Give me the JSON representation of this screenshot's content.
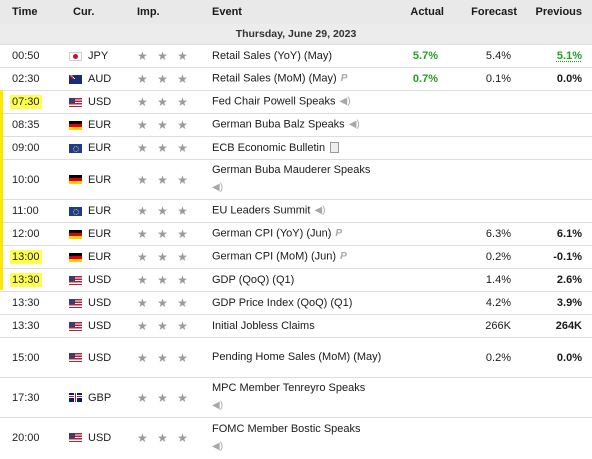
{
  "headers": {
    "time": "Time",
    "currency": "Cur.",
    "importance": "Imp.",
    "event": "Event",
    "actual": "Actual",
    "forecast": "Forecast",
    "previous": "Previous"
  },
  "date_label": "Thursday, June 29, 2023",
  "colors": {
    "positive": "#22a022",
    "highlight": "#ffff4d",
    "star": "#9a9a9a"
  },
  "rows": [
    {
      "time": "00:50",
      "currency": "JPY",
      "flag": "jpy",
      "stars": "★ ★ ★",
      "event": "Retail Sales (YoY) (May)",
      "icon": "",
      "actual": "5.7%",
      "forecast": "5.4%",
      "previous": "5.1%"
    },
    {
      "time": "02:30",
      "currency": "AUD",
      "flag": "aud",
      "stars": "★ ★ ★",
      "event": "Retail Sales (MoM) (May)",
      "icon": "P",
      "actual": "0.7%",
      "forecast": "0.1%",
      "previous": "0.0%"
    },
    {
      "time": "07:30",
      "currency": "USD",
      "flag": "usd",
      "stars": "★ ★ ★",
      "event": "Fed Chair Powell Speaks",
      "icon": "◀)",
      "actual": "",
      "forecast": "",
      "previous": ""
    },
    {
      "time": "08:35",
      "currency": "EUR",
      "flag": "de",
      "stars": "★ ★ ★",
      "event": "German Buba Balz Speaks",
      "icon": "◀)",
      "actual": "",
      "forecast": "",
      "previous": ""
    },
    {
      "time": "09:00",
      "currency": "EUR",
      "flag": "eu",
      "stars": "★ ★ ★",
      "event": "ECB Economic Bulletin",
      "icon": "",
      "actual": "",
      "forecast": "",
      "previous": ""
    },
    {
      "time": "10:00",
      "currency": "EUR",
      "flag": "de",
      "stars": "★ ★ ★",
      "event": "German Buba Mauderer Speaks",
      "icon": "◀)",
      "actual": "",
      "forecast": "",
      "previous": ""
    },
    {
      "time": "11:00",
      "currency": "EUR",
      "flag": "eu",
      "stars": "★ ★ ★",
      "event": "EU Leaders Summit",
      "icon": "◀)",
      "actual": "",
      "forecast": "",
      "previous": ""
    },
    {
      "time": "12:00",
      "currency": "EUR",
      "flag": "de",
      "stars": "★ ★ ★",
      "event": "German CPI (YoY) (Jun)",
      "icon": "P",
      "actual": "",
      "forecast": "6.3%",
      "previous": "6.1%"
    },
    {
      "time": "13:00",
      "currency": "EUR",
      "flag": "de",
      "stars": "★ ★ ★",
      "event": "German CPI (MoM) (Jun)",
      "icon": "P",
      "actual": "",
      "forecast": "0.2%",
      "previous": "-0.1%"
    },
    {
      "time": "13:30",
      "currency": "USD",
      "flag": "usd",
      "stars": "★ ★ ★",
      "event": "GDP (QoQ) (Q1)",
      "icon": "",
      "actual": "",
      "forecast": "1.4%",
      "previous": "2.6%"
    },
    {
      "time": "13:30",
      "currency": "USD",
      "flag": "usd",
      "stars": "★ ★ ★",
      "event": "GDP Price Index (QoQ) (Q1)",
      "icon": "",
      "actual": "",
      "forecast": "4.2%",
      "previous": "3.9%"
    },
    {
      "time": "13:30",
      "currency": "USD",
      "flag": "usd",
      "stars": "★ ★ ★",
      "event": "Initial Jobless Claims",
      "icon": "",
      "actual": "",
      "forecast": "266K",
      "previous": "264K"
    },
    {
      "time": "15:00",
      "currency": "USD",
      "flag": "usd",
      "stars": "★ ★ ★",
      "event": "Pending Home Sales (MoM) (May)",
      "icon": "",
      "actual": "",
      "forecast": "0.2%",
      "previous": "0.0%"
    },
    {
      "time": "17:30",
      "currency": "GBP",
      "flag": "gbp",
      "stars": "★ ★ ★",
      "event": "MPC Member Tenreyro Speaks",
      "icon": "◀)",
      "actual": "",
      "forecast": "",
      "previous": ""
    },
    {
      "time": "20:00",
      "currency": "USD",
      "flag": "usd",
      "stars": "★ ★ ★",
      "event": "FOMC Member Bostic Speaks",
      "icon": "◀)",
      "actual": "",
      "forecast": "",
      "previous": ""
    }
  ]
}
